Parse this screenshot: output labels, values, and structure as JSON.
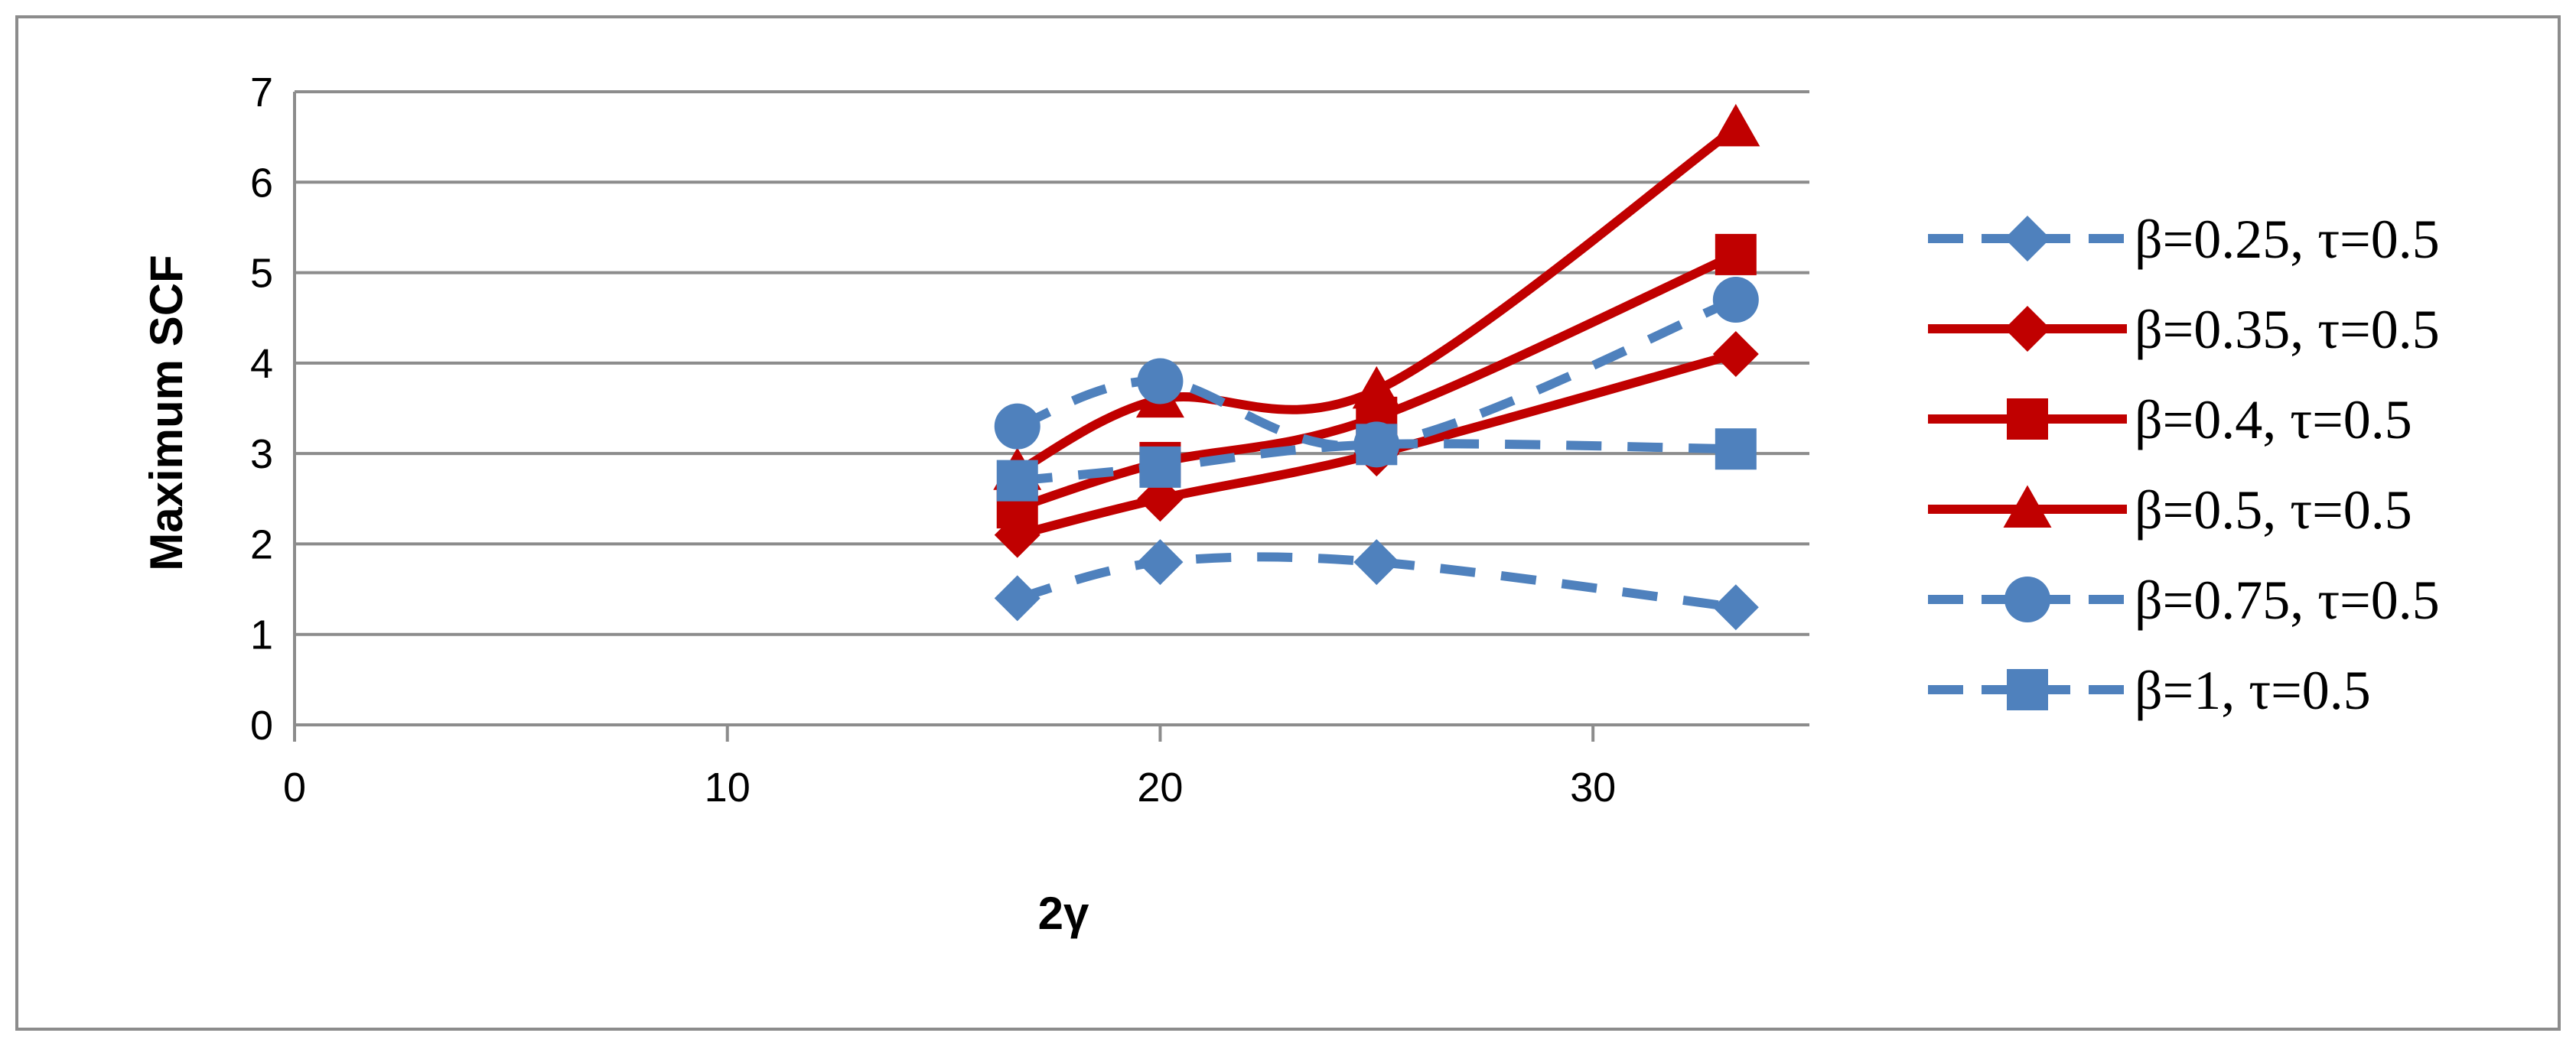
{
  "chart_data": {
    "type": "line",
    "title": "",
    "xlabel": "2γ",
    "ylabel": "Maximum SCF",
    "xlim": [
      0,
      35
    ],
    "ylim": [
      0,
      7
    ],
    "x_ticks": [
      0,
      10,
      20,
      30
    ],
    "y_ticks": [
      0,
      1,
      2,
      3,
      4,
      5,
      6,
      7
    ],
    "grid": "horizontal",
    "legend_position": "right",
    "x": [
      16.7,
      20,
      25,
      33.3
    ],
    "series": [
      {
        "name": "β=0.25, τ=0.5",
        "values": [
          1.4,
          1.8,
          1.8,
          1.3
        ],
        "color": "#4f81bd",
        "dash": true,
        "marker": "diamond"
      },
      {
        "name": "β=0.35, τ=0.5",
        "values": [
          2.1,
          2.5,
          3.0,
          4.1
        ],
        "color": "#c00000",
        "dash": false,
        "marker": "diamond"
      },
      {
        "name": "β=0.4, τ=0.5",
        "values": [
          2.4,
          2.9,
          3.4,
          5.2
        ],
        "color": "#c00000",
        "dash": false,
        "marker": "square"
      },
      {
        "name": "β=0.5, τ=0.5",
        "values": [
          2.8,
          3.6,
          3.7,
          6.6
        ],
        "color": "#c00000",
        "dash": false,
        "marker": "triangle"
      },
      {
        "name": "β=0.75, τ=0.5",
        "values": [
          3.3,
          3.8,
          3.1,
          4.7
        ],
        "color": "#4f81bd",
        "dash": true,
        "marker": "circle"
      },
      {
        "name": "β=1, τ=0.5",
        "values": [
          2.7,
          2.85,
          3.1,
          3.05
        ],
        "color": "#4f81bd",
        "dash": true,
        "marker": "square"
      }
    ]
  }
}
